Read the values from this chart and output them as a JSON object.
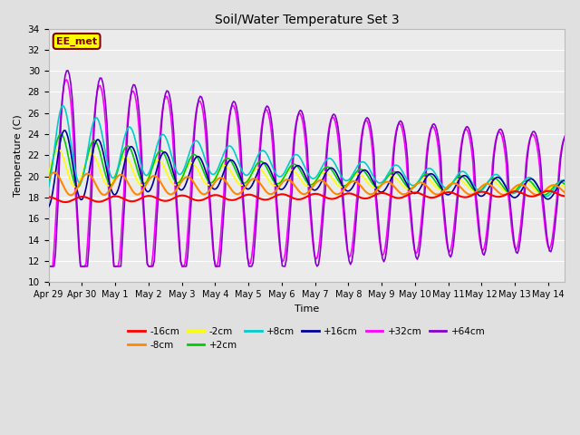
{
  "title": "Soil/Water Temperature Set 3",
  "xlabel": "Time",
  "ylabel": "Temperature (C)",
  "ylim": [
    10,
    34
  ],
  "yticks": [
    10,
    12,
    14,
    16,
    18,
    20,
    22,
    24,
    26,
    28,
    30,
    32,
    34
  ],
  "date_labels": [
    "Apr 29",
    "Apr 30",
    "May 1",
    "May 2",
    "May 3",
    "May 4",
    "May 5",
    "May 6",
    "May 7",
    "May 8",
    "May 9",
    "May 10",
    "May 11",
    "May 12",
    "May 13",
    "May 14"
  ],
  "n_days": 15.5,
  "annotation_text": "EE_met",
  "annotation_bg": "#ffff00",
  "annotation_edge": "#800000",
  "colors": {
    "-16cm": "#ff0000",
    "-8cm": "#ff8800",
    "-2cm": "#ffff00",
    "+2cm": "#00cc00",
    "+8cm": "#00cccc",
    "+16cm": "#000099",
    "+32cm": "#ff00ff",
    "+64cm": "#8800cc"
  },
  "legend_labels": [
    "-16cm",
    "-8cm",
    "-2cm",
    "+2cm",
    "+8cm",
    "+16cm",
    "+32cm",
    "+64cm"
  ],
  "background_color": "#e0e0e0",
  "plot_bg": "#ebebeb"
}
